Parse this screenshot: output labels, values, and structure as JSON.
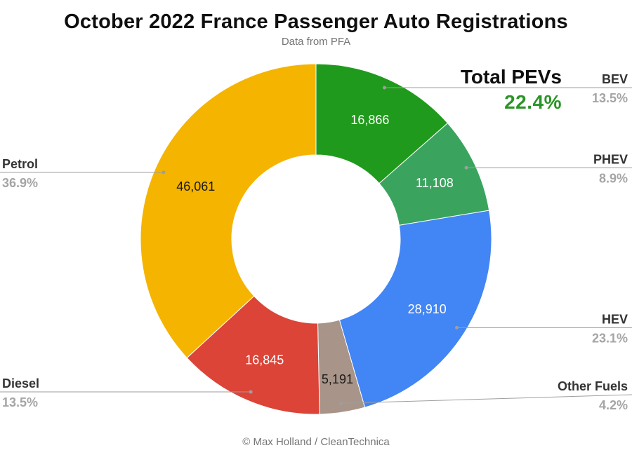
{
  "header": {
    "title": "October 2022 France Passenger Auto Registrations",
    "subtitle": "Data from PFA"
  },
  "footer": {
    "credit": "© Max Holland / CleanTechnica"
  },
  "total_pev": {
    "label": "Total PEVs",
    "value": "22.4%",
    "value_color": "#2a9426"
  },
  "chart_data": {
    "type": "pie",
    "donut": true,
    "title": "October 2022 France Passenger Auto Registrations",
    "subtitle": "Data from PFA",
    "direction": "clockwise",
    "start_angle_deg": 0,
    "legend_position": "outside-callouts",
    "categories": [
      "BEV",
      "PHEV",
      "HEV",
      "Other Fuels",
      "Diesel",
      "Petrol"
    ],
    "values": [
      16866,
      11108,
      28910,
      5191,
      16845,
      46061
    ],
    "slices": [
      {
        "label": "BEV",
        "value": 16866,
        "value_label": "16,866",
        "percent": "13.5%",
        "color": "#209a1c",
        "value_text_color": "#ffffff"
      },
      {
        "label": "PHEV",
        "value": 11108,
        "value_label": "11,108",
        "percent": "8.9%",
        "color": "#3aa45f",
        "value_text_color": "#ffffff"
      },
      {
        "label": "HEV",
        "value": 28910,
        "value_label": "28,910",
        "percent": "23.1%",
        "color": "#4285f4",
        "value_text_color": "#ffffff"
      },
      {
        "label": "Other Fuels",
        "value": 5191,
        "value_label": "5,191",
        "percent": "4.2%",
        "color": "#a89488",
        "value_text_color": "#1a1a1a"
      },
      {
        "label": "Diesel",
        "value": 16845,
        "value_label": "16,845",
        "percent": "13.5%",
        "color": "#db4437",
        "value_text_color": "#ffffff"
      },
      {
        "label": "Petrol",
        "value": 46061,
        "value_label": "46,061",
        "percent": "36.9%",
        "color": "#f5b400",
        "value_text_color": "#1a1a1a"
      }
    ],
    "annotations": {
      "total_label": "Total PEVs",
      "total_value": "22.4%"
    },
    "style_colors": {
      "callout_name": "#333333",
      "callout_percent": "#a5a5a5",
      "leader_line": "#9e9e9e",
      "leader_dot": "#9e9e9e",
      "slice_border": "#ffffff"
    }
  }
}
